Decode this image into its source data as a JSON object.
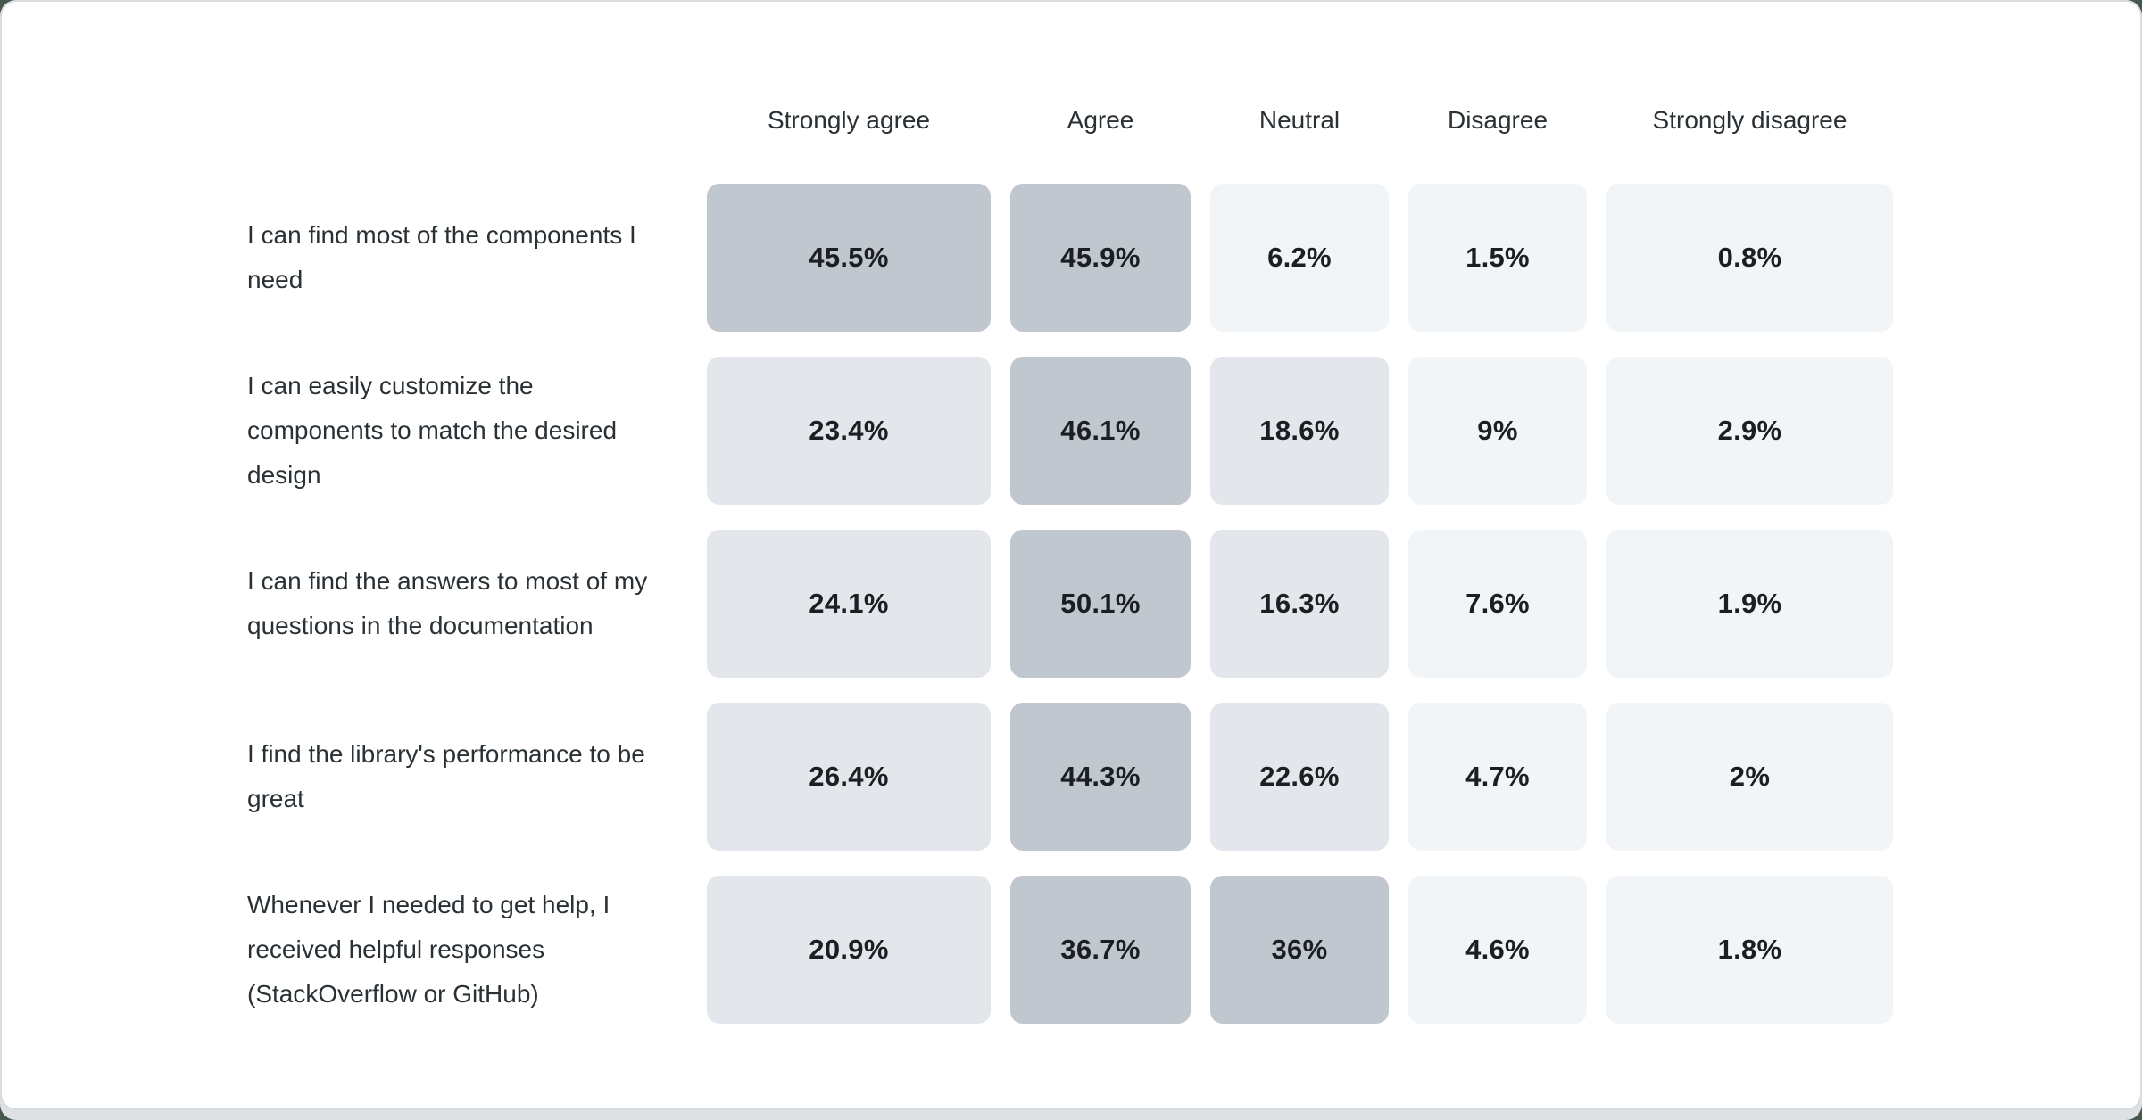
{
  "chart_data": {
    "type": "heatmap",
    "columns": [
      "Strongly agree",
      "Agree",
      "Neutral",
      "Disagree",
      "Strongly disagree"
    ],
    "rows": [
      {
        "label": "I can find most of the components I need",
        "values": [
          "45.5%",
          "45.9%",
          "6.2%",
          "1.5%",
          "0.8%"
        ]
      },
      {
        "label": "I can easily customize the components to match the desired design",
        "values": [
          "23.4%",
          "46.1%",
          "18.6%",
          "9%",
          "2.9%"
        ]
      },
      {
        "label": "I can find the answers to most of my questions in the documentation",
        "values": [
          "24.1%",
          "50.1%",
          "16.3%",
          "7.6%",
          "1.9%"
        ]
      },
      {
        "label": "I find the library's performance to be great",
        "values": [
          "26.4%",
          "44.3%",
          "22.6%",
          "4.7%",
          "2%"
        ]
      },
      {
        "label": "Whenever I needed to get help, I received helpful responses (StackOverflow or GitHub)",
        "values": [
          "20.9%",
          "36.7%",
          "36%",
          "4.6%",
          "1.8%"
        ]
      }
    ],
    "color_scale": {
      "thresholds": [
        10,
        30
      ],
      "low": "#f2f5f8",
      "mid": "#e3e6ea",
      "high": "#c1c7ce"
    },
    "layout": {
      "card_background": "#ffffff",
      "card_border": "#d8dce0",
      "page_strip": "#dde1e4",
      "backdrop": "#46584b",
      "text_color": "#2a3135",
      "value_color": "#1b1f23",
      "legend": "off",
      "grid": "off"
    }
  }
}
